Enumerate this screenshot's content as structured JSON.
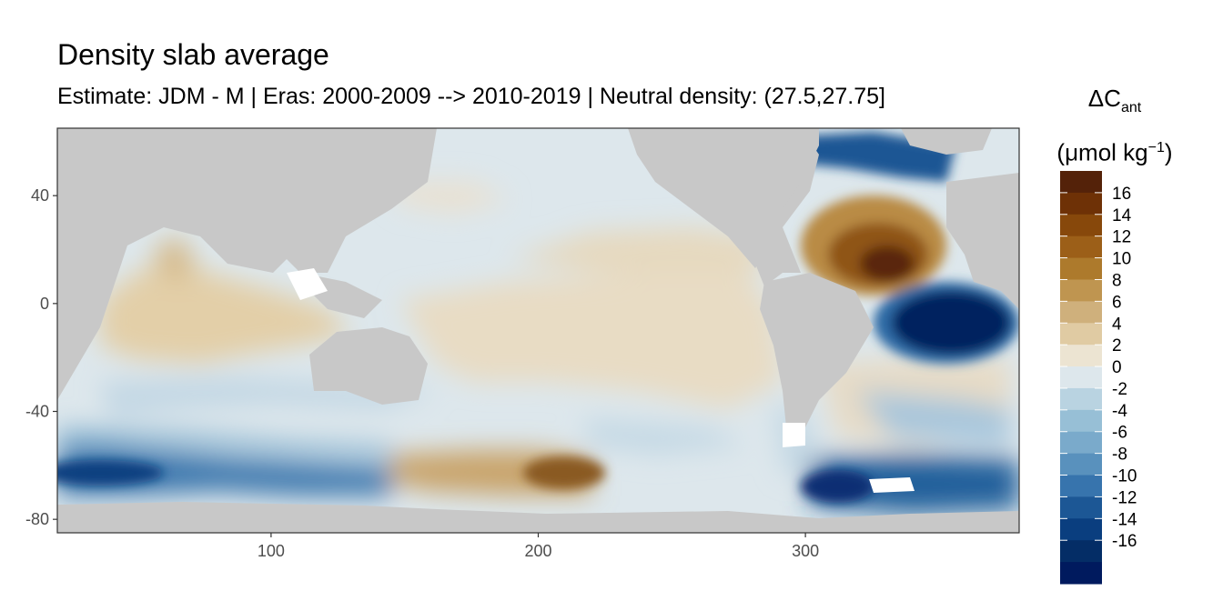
{
  "chart_data": {
    "type": "heatmap",
    "title": "Density slab average",
    "subtitle": "Estimate: JDM - M | Eras: 2000-2009 --> 2010-2019 | Neutral density: (27.5,27.75]",
    "legend_title": {
      "symbol": "ΔC",
      "subscript": "ant",
      "unit_prefix": "(μmol kg",
      "unit_sup": "−1",
      "unit_suffix": ")"
    },
    "xlim": [
      20,
      380
    ],
    "ylim": [
      -85,
      65
    ],
    "x_ticks": [
      100,
      200,
      300
    ],
    "y_ticks": [
      40,
      0,
      -40,
      -80
    ],
    "legend_breaks": [
      16,
      14,
      12,
      10,
      8,
      6,
      4,
      2,
      0,
      -2,
      -4,
      -6,
      -8,
      -10,
      -12,
      -14,
      -16
    ],
    "legend_colors": [
      "#542209",
      "#6e3106",
      "#87480b",
      "#9c5f18",
      "#ad7a2c",
      "#bf9550",
      "#cfb07c",
      "#e0cba3",
      "#ece4d2",
      "#dde7ec",
      "#b9d3e1",
      "#97bfd6",
      "#7aaacb",
      "#5991bd",
      "#3774ad",
      "#1c5795",
      "#0a3e7f",
      "#042d66",
      "#001a5e"
    ],
    "land_color": "#c8c8c8",
    "features": [
      {
        "name": "atlantic-positive",
        "lon": 335,
        "lat": 15,
        "value": 16
      },
      {
        "name": "atlantic-negative",
        "lon": 345,
        "lat": -5,
        "value": -16
      },
      {
        "name": "south-pacific-positive",
        "lon": 210,
        "lat": -63,
        "value": 10
      },
      {
        "name": "southern-ocean-negative",
        "lon": 320,
        "lat": -67,
        "value": -14
      },
      {
        "name": "north-atlantic-negative",
        "lon": 330,
        "lat": 58,
        "value": -12
      }
    ]
  }
}
